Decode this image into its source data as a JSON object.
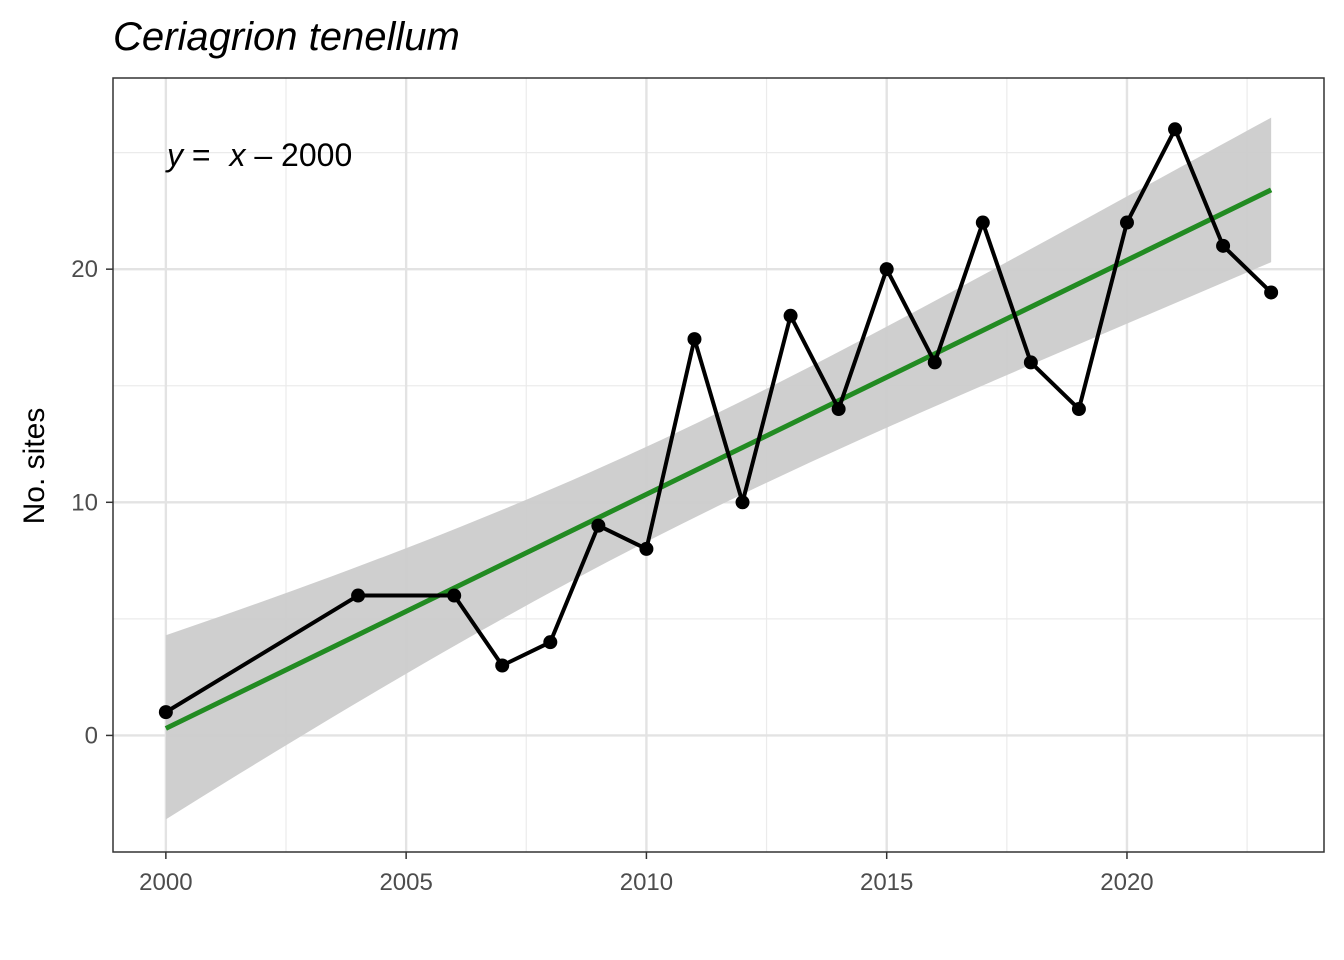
{
  "chart_data": {
    "type": "line",
    "title": "Ceriagrion tenellum",
    "xlabel": "",
    "ylabel": "No. sites",
    "xlim": [
      1998.9,
      2024.1
    ],
    "ylim": [
      -5,
      28.2
    ],
    "x_ticks": [
      2000,
      2005,
      2010,
      2015,
      2020
    ],
    "x_tick_labels": [
      "2000",
      "2005",
      "2010",
      "2015",
      "2020"
    ],
    "y_ticks": [
      0,
      10,
      20
    ],
    "y_tick_labels": [
      "0",
      "10",
      "20"
    ],
    "grid": true,
    "series": [
      {
        "x": [
          2000,
          2004,
          2006,
          2007,
          2008,
          2009,
          2010,
          2011,
          2012,
          2013,
          2014,
          2015,
          2016,
          2017,
          2018,
          2019,
          2020,
          2021,
          2022,
          2023
        ],
        "values": [
          1,
          6,
          6,
          3,
          4,
          9,
          8,
          17,
          10,
          18,
          14,
          20,
          16,
          22,
          16,
          14,
          22,
          26,
          21,
          19
        ],
        "color": "#000000"
      }
    ],
    "trend": {
      "type": "linear",
      "color": "#228b22",
      "x": [
        2000,
        2023
      ],
      "values": [
        0.3,
        23.4
      ],
      "ci_lower": [
        -3.6,
        20.3
      ],
      "ci_upper": [
        4.3,
        26.5
      ],
      "ci_color": "#cccccc"
    },
    "annotation": {
      "y_var": "y",
      "equals": " = ",
      "x_var": "x",
      "rest": " – 2000"
    }
  }
}
